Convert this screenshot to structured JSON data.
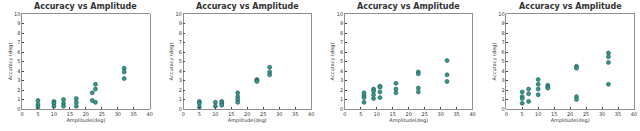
{
  "chart_data": [
    {
      "type": "scatter",
      "title": "Accuracy vs Amplitude",
      "xlabel": "Amplitude(deg)",
      "ylabel": "Accuracy (deg)",
      "x": [
        5,
        5,
        5,
        10,
        10,
        10,
        13,
        13,
        13,
        17,
        17,
        17,
        22,
        22,
        23,
        23,
        23,
        32,
        32,
        32
      ],
      "values": [
        0.9,
        0.5,
        0.2,
        0.8,
        0.6,
        0.3,
        1.0,
        0.6,
        0.3,
        1.1,
        0.7,
        0.3,
        1.7,
        0.9,
        2.6,
        2.1,
        0.7,
        4.3,
        3.9,
        3.2
      ],
      "color": "#2a9d8f",
      "xlim": [
        0,
        40
      ],
      "ylim": [
        0,
        10
      ],
      "xticks": [
        0,
        5,
        10,
        15,
        20,
        25,
        30,
        35,
        40
      ],
      "yticks": [
        0,
        1,
        2,
        3,
        4,
        5,
        6,
        7,
        8,
        9,
        10
      ],
      "grid": false
    },
    {
      "type": "scatter",
      "title": "Accuracy vs Amplitude",
      "xlabel": "Amplitude(deg)",
      "ylabel": "Accuracy (deg)",
      "x": [
        5,
        5,
        5,
        10,
        10,
        12,
        12,
        12,
        17,
        17,
        17,
        17,
        23,
        23,
        23,
        27,
        27,
        27
      ],
      "values": [
        0.8,
        0.6,
        0.2,
        0.7,
        0.3,
        0.8,
        0.6,
        0.4,
        1.7,
        1.3,
        1.0,
        0.7,
        3.1,
        3.0,
        2.9,
        4.4,
        3.9,
        3.6
      ],
      "color": "#2a9d8f",
      "xlim": [
        0,
        40
      ],
      "ylim": [
        0,
        10
      ],
      "xticks": [
        0,
        5,
        10,
        15,
        20,
        25,
        30,
        35,
        40
      ],
      "yticks": [
        0,
        1,
        2,
        3,
        4,
        5,
        6,
        7,
        8,
        9,
        10
      ],
      "grid": false
    },
    {
      "type": "scatter",
      "title": "Accuracy vs Amplitude",
      "xlabel": "Amplitude(deg)",
      "ylabel": "Accuracy (deg)",
      "x": [
        6,
        6,
        6,
        6,
        9,
        9,
        9,
        9,
        11,
        11,
        11,
        11,
        16,
        16,
        16,
        23,
        23,
        23,
        23,
        32,
        32,
        32
      ],
      "values": [
        1.7,
        1.4,
        1.2,
        0.7,
        2.1,
        1.9,
        1.5,
        1.1,
        2.4,
        2.3,
        1.8,
        1.2,
        2.7,
        2.1,
        1.7,
        3.9,
        3.7,
        2.2,
        1.8,
        5.1,
        3.6,
        2.9
      ],
      "color": "#2a9d8f",
      "xlim": [
        0,
        40
      ],
      "ylim": [
        0,
        10
      ],
      "xticks": [
        0,
        5,
        10,
        15,
        20,
        25,
        30,
        35,
        40
      ],
      "yticks": [
        0,
        1,
        2,
        3,
        4,
        5,
        6,
        7,
        8,
        9,
        10
      ],
      "grid": false
    },
    {
      "type": "scatter",
      "title": "Accuracy vs Amplitude",
      "xlabel": "Amplitude(deg)",
      "ylabel": "Accuracy (deg)",
      "x": [
        5,
        5,
        5,
        5,
        7,
        7,
        7,
        10,
        10,
        10,
        10,
        13,
        13,
        13,
        22,
        22,
        22,
        22,
        32,
        32,
        32,
        32
      ],
      "values": [
        1.8,
        1.3,
        1.1,
        0.6,
        2.1,
        1.6,
        0.8,
        3.1,
        2.6,
        2.1,
        1.5,
        2.5,
        2.3,
        2.2,
        4.5,
        4.3,
        1.3,
        1.0,
        5.9,
        5.5,
        4.9,
        2.6
      ],
      "color": "#2a9d8f",
      "xlim": [
        0,
        40
      ],
      "ylim": [
        0,
        10
      ],
      "xticks": [
        0,
        5,
        10,
        15,
        20,
        25,
        30,
        35,
        40
      ],
      "yticks": [
        0,
        1,
        2,
        3,
        4,
        5,
        6,
        7,
        8,
        9,
        10
      ],
      "grid": false
    }
  ]
}
